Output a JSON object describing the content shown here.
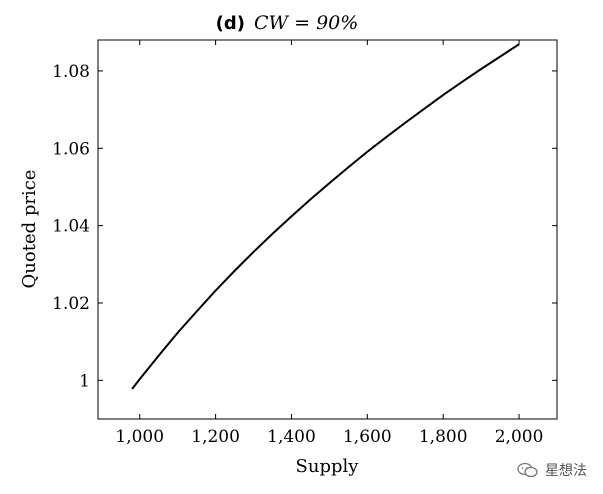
{
  "chart_data": {
    "type": "line",
    "panel_label": "(d)",
    "title_formula": "CW = 90%",
    "xlabel": "Supply",
    "ylabel": "Quoted price",
    "xlim": [
      890,
      2100
    ],
    "ylim": [
      0.99,
      1.088
    ],
    "x_ticks": [
      1000,
      1200,
      1400,
      1600,
      1800,
      2000
    ],
    "x_tick_labels": [
      "1,000",
      "1,200",
      "1,400",
      "1,600",
      "1,800",
      "2,000"
    ],
    "y_ticks": [
      1.0,
      1.02,
      1.04,
      1.06,
      1.08
    ],
    "y_tick_labels": [
      "1",
      "1.02",
      "1.04",
      "1.06",
      "1.08"
    ],
    "grid": false,
    "series": [
      {
        "color": "#000000",
        "x": [
          980,
          1000,
          1050,
          1100,
          1150,
          1200,
          1250,
          1300,
          1350,
          1400,
          1450,
          1500,
          1550,
          1600,
          1650,
          1700,
          1750,
          1800,
          1850,
          1900,
          1950,
          2000
        ],
        "y": [
          0.9978,
          1.0003,
          1.0064,
          1.0123,
          1.0178,
          1.0232,
          1.0283,
          1.0332,
          1.0379,
          1.0424,
          1.0468,
          1.051,
          1.0551,
          1.0591,
          1.0629,
          1.0666,
          1.0702,
          1.0738,
          1.0772,
          1.0805,
          1.0837,
          1.0869
        ]
      }
    ]
  },
  "watermark": {
    "text": "星想法"
  }
}
